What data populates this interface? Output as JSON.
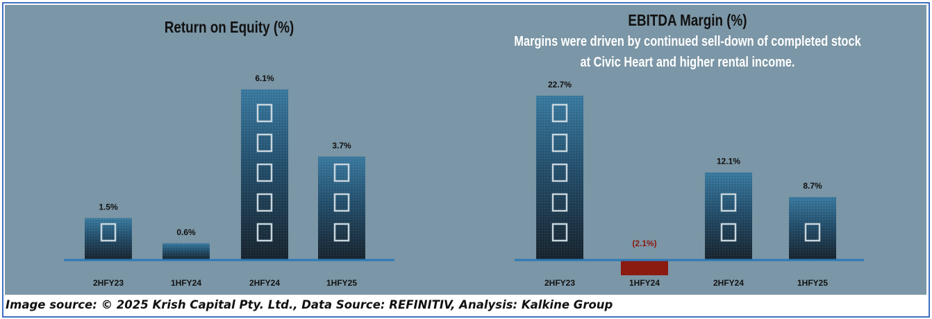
{
  "footer": "Image source: © 2025 Krish Capital Pty. Ltd., Data Source: REFINITIV, Analysis: Kalkine Group",
  "colors": {
    "background": "#7b96a6",
    "bar_top": "#2f6a8c",
    "bar_bottom": "#1a2a36",
    "negative_bar": "#8b1a10",
    "axis": "#2a7ab8",
    "negative_label": "#8b1a10"
  },
  "chart_data": [
    {
      "type": "bar",
      "title": "Return on Equity (%)",
      "categories": [
        "2HFY23",
        "1HFY24",
        "2HFY24",
        "1HFY25"
      ],
      "values": [
        1.5,
        0.6,
        6.1,
        3.7
      ],
      "data_labels": [
        "1.5%",
        "0.6%",
        "6.1%",
        "3.7%"
      ],
      "xlabel": "",
      "ylabel": "",
      "grid": false
    },
    {
      "type": "bar",
      "title": "EBITDA Margin (%)",
      "subtitle": [
        "Margins were driven by continued sell-down of completed stock",
        "at Civic Heart and higher rental income."
      ],
      "categories": [
        "2HFY23",
        "1HFY24",
        "2HFY24",
        "1HFY25"
      ],
      "values": [
        22.7,
        -2.1,
        12.1,
        8.7
      ],
      "data_labels": [
        "22.7%",
        "(2.1%)",
        "12.1%",
        "8.7%"
      ],
      "xlabel": "",
      "ylabel": "",
      "grid": false
    }
  ]
}
